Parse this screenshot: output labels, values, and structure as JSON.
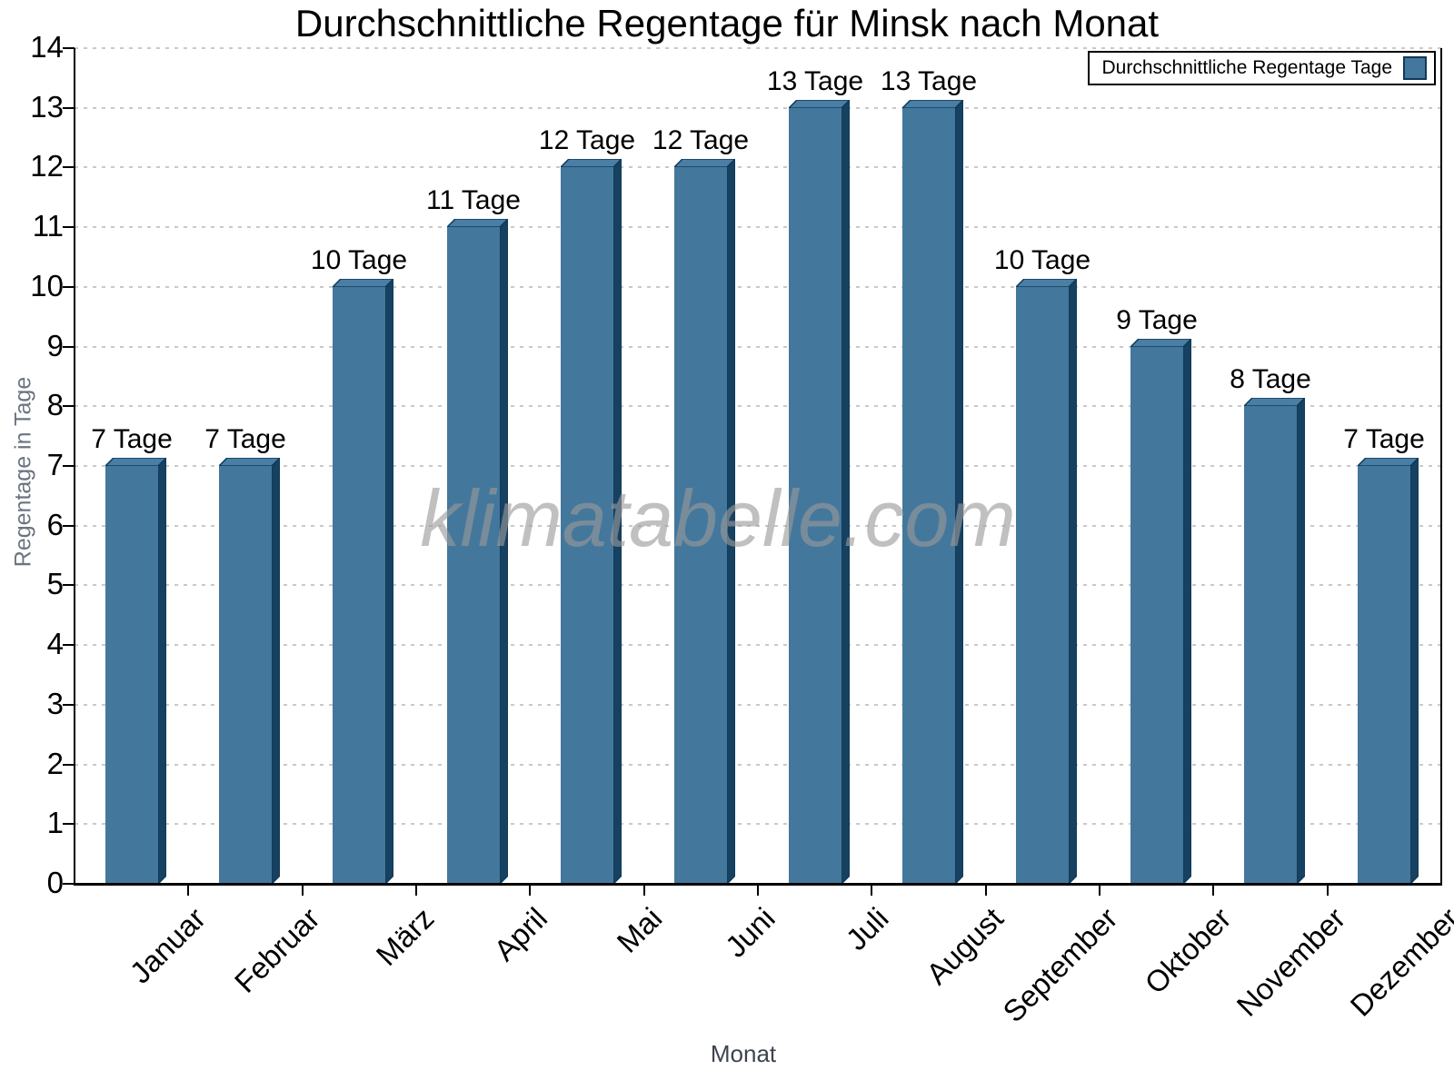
{
  "title": "Durchschnittliche Regentage für Minsk nach Monat",
  "legend": {
    "label": "Durchschnittliche Regentage Tage",
    "swatch_color": "#44779c",
    "position": "top-right"
  },
  "watermark": "klimatabelle.com",
  "axes": {
    "x_label": "Monat",
    "y_label": "Regentage in Tage"
  },
  "colors": {
    "bar_front": "#44779c",
    "bar_top": "#4b7ea4",
    "bar_side": "#174161",
    "bar_outline": "#0d3a5a",
    "gridline": "#c9c9c9",
    "axis": "#000000",
    "watermark_gray": "#9a9a9a"
  },
  "chart_data": {
    "type": "bar",
    "title": "Durchschnittliche Regentage für Minsk nach Monat",
    "xlabel": "Monat",
    "ylabel": "Regentage in Tage",
    "categories": [
      "Januar",
      "Februar",
      "März",
      "April",
      "Mai",
      "Juni",
      "Juli",
      "August",
      "September",
      "Oktober",
      "November",
      "Dezember"
    ],
    "series": [
      {
        "name": "Durchschnittliche Regentage Tage",
        "values": [
          7,
          7,
          10,
          11,
          12,
          12,
          13,
          13,
          10,
          9,
          8,
          7
        ]
      }
    ],
    "value_labels": [
      "7 Tage",
      "7 Tage",
      "10 Tage",
      "11 Tage",
      "12 Tage",
      "12 Tage",
      "13 Tage",
      "13 Tage",
      "10 Tage",
      "9 Tage",
      "8 Tage",
      "7 Tage"
    ],
    "unit": "Tage",
    "ylim": [
      0,
      14
    ],
    "y_tick_step": 1,
    "y_tick_labels": [
      "0",
      "1",
      "2",
      "3",
      "4",
      "5",
      "6",
      "7",
      "8",
      "9",
      "10",
      "11",
      "12",
      "13",
      "14"
    ],
    "grid": "horizontal-dotted",
    "legend_position": "top-right",
    "bar_style": "3d-bevel"
  }
}
